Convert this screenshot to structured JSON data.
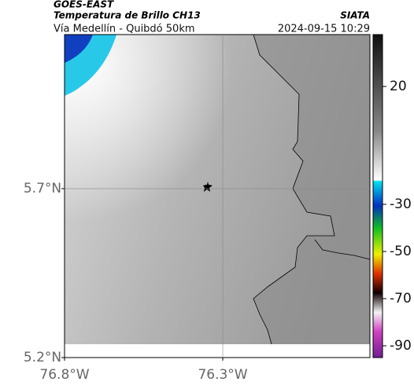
{
  "map": {
    "title": "GOES-EAST",
    "subtitle": "Temperatura de Brillo CH13",
    "region": "Vía Medellín - Quibdó 50km",
    "source": "SIATA",
    "timestamp": "2024-09-15 10:29",
    "xlim": [
      -76.8,
      -75.835
    ],
    "ylim": [
      5.2,
      6.156
    ],
    "xticks": [
      {
        "value": -76.8,
        "label": "76.8°W"
      },
      {
        "value": -76.3,
        "label": "76.3°W"
      }
    ],
    "yticks": [
      {
        "value": 5.7,
        "label": "5.7°N"
      },
      {
        "value": 5.2,
        "label": "5.2°N"
      }
    ],
    "colorbar": {
      "lim": [
        42,
        -95
      ],
      "ticks": [
        20,
        -30,
        -50,
        -70,
        -90
      ]
    }
  }
}
